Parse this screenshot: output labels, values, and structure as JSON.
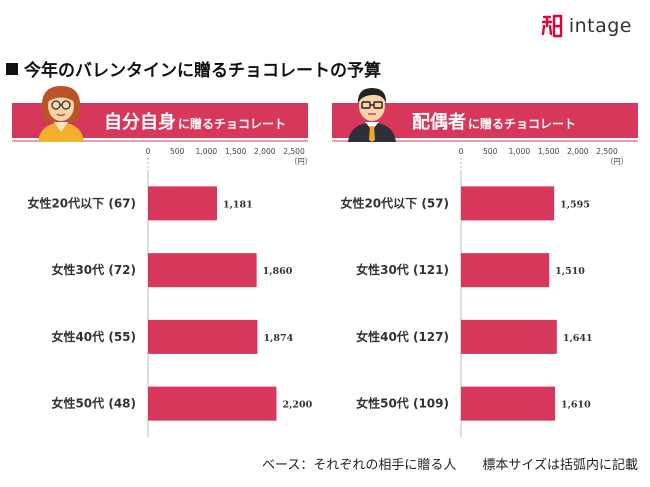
{
  "logo": {
    "text": "intage",
    "dot": "®"
  },
  "title": "今年のバレンタインに贈るチョコレートの予算",
  "unit_label": "（円）",
  "footer": {
    "base": "ベース：それぞれの相手に贈る人",
    "note": "標本サイズは括弧内に記載"
  },
  "colors": {
    "bar": "#d6375b",
    "band": "#d6375b"
  },
  "chart_data": [
    {
      "type": "bar",
      "orientation": "horizontal",
      "title_main": "自分自身",
      "title_sub": "に贈るチョコレート",
      "xlim": [
        0,
        2500
      ],
      "ticks": [
        0,
        500,
        1000,
        1500,
        2000,
        2500
      ],
      "tick_labels": [
        "0",
        "500",
        "1,000",
        "1,500",
        "2,000",
        "2,500"
      ],
      "categories": [
        "女性20代以下 (67)",
        "女性30代 (72)",
        "女性40代 (55)",
        "女性50代 (48)"
      ],
      "values": [
        1181,
        1860,
        1874,
        2200
      ],
      "value_labels": [
        "1,181",
        "1,860",
        "1,874",
        "2,200"
      ]
    },
    {
      "type": "bar",
      "orientation": "horizontal",
      "title_main": "配偶者",
      "title_sub": "に贈るチョコレート",
      "xlim": [
        0,
        2500
      ],
      "ticks": [
        0,
        500,
        1000,
        1500,
        2000,
        2500
      ],
      "tick_labels": [
        "0",
        "500",
        "1,000",
        "1,500",
        "2,000",
        "2,500"
      ],
      "categories": [
        "女性20代以下 (57)",
        "女性30代 (121)",
        "女性40代 (127)",
        "女性50代 (109)"
      ],
      "values": [
        1595,
        1510,
        1641,
        1610
      ],
      "value_labels": [
        "1,595",
        "1,510",
        "1,641",
        "1,610"
      ]
    }
  ]
}
